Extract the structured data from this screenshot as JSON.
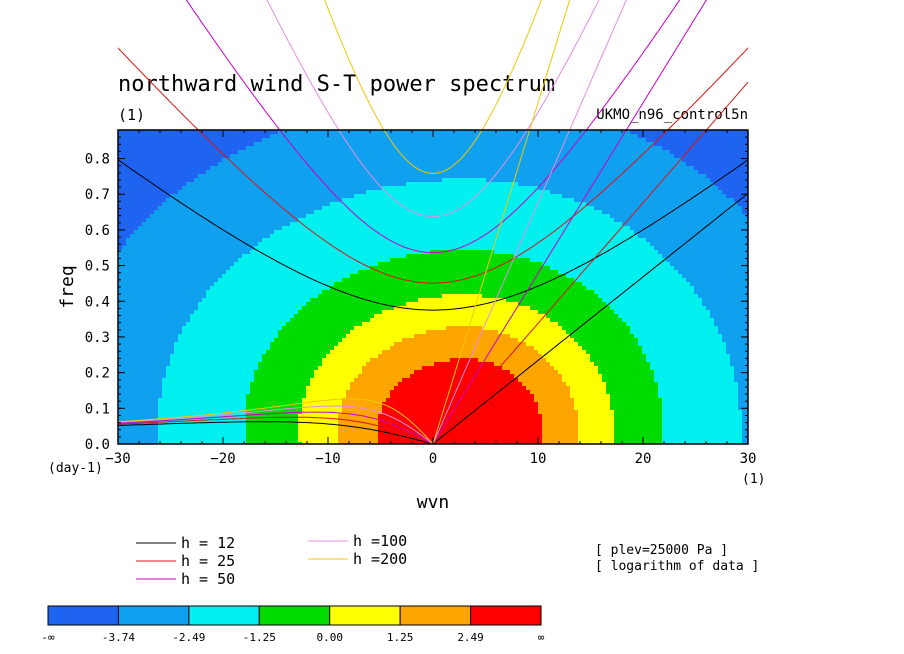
{
  "chart_data": {
    "type": "contour",
    "title": "northward wind S-T power spectrum",
    "units_label": "(1)",
    "dataset": "UKMO_n96_control5n",
    "xlabel": "wvn",
    "ylabel": "freq",
    "y_unit_label": "(day-1)",
    "x_unit_label": "(1)",
    "xlim": [
      -30,
      30
    ],
    "ylim": [
      0,
      0.88
    ],
    "xticks": [
      -30,
      -20,
      -10,
      0,
      10,
      20,
      30
    ],
    "yticks": [
      0.0,
      0.1,
      0.2,
      0.3,
      0.4,
      0.5,
      0.6,
      0.7,
      0.8
    ],
    "field": {
      "description_levels": "logarithm of spectral power, filled contours",
      "peak": {
        "wvn": 3,
        "freq": 0.04
      },
      "levels": [
        {
          "range": "-inf to -3.74",
          "color": "#1E64F0"
        },
        {
          "range": "-3.74 to -2.49",
          "color": "#10A0F0"
        },
        {
          "range": "-2.49 to -1.25",
          "color": "#00F0F0"
        },
        {
          "range": "-1.25 to 0.00",
          "color": "#00DC00"
        },
        {
          "range": "0.00 to 1.25",
          "color": "#FFFF00"
        },
        {
          "range": "1.25 to 2.49",
          "color": "#FFA500"
        },
        {
          "range": "2.49 to inf",
          "color": "#FF0000"
        }
      ]
    },
    "dispersion_curves": {
      "equivalent_depths": [
        12,
        25,
        50,
        100,
        200
      ],
      "colors": {
        "12": "#000000",
        "25": "#DC1414",
        "50": "#C800C8",
        "100": "#E68CE6",
        "200": "#F0C800"
      }
    },
    "legend": {
      "col1": [
        "h = 12",
        "h = 25",
        "h = 50"
      ],
      "col2": [
        "h =100",
        "h =200"
      ]
    },
    "notes": [
      "[ plev=25000 Pa ]",
      "[ logarithm of data ]"
    ],
    "colorbar_labels": [
      "-∞",
      "-3.74",
      "-2.49",
      "-1.25",
      "0.00",
      "1.25",
      "2.49",
      "∞"
    ]
  }
}
